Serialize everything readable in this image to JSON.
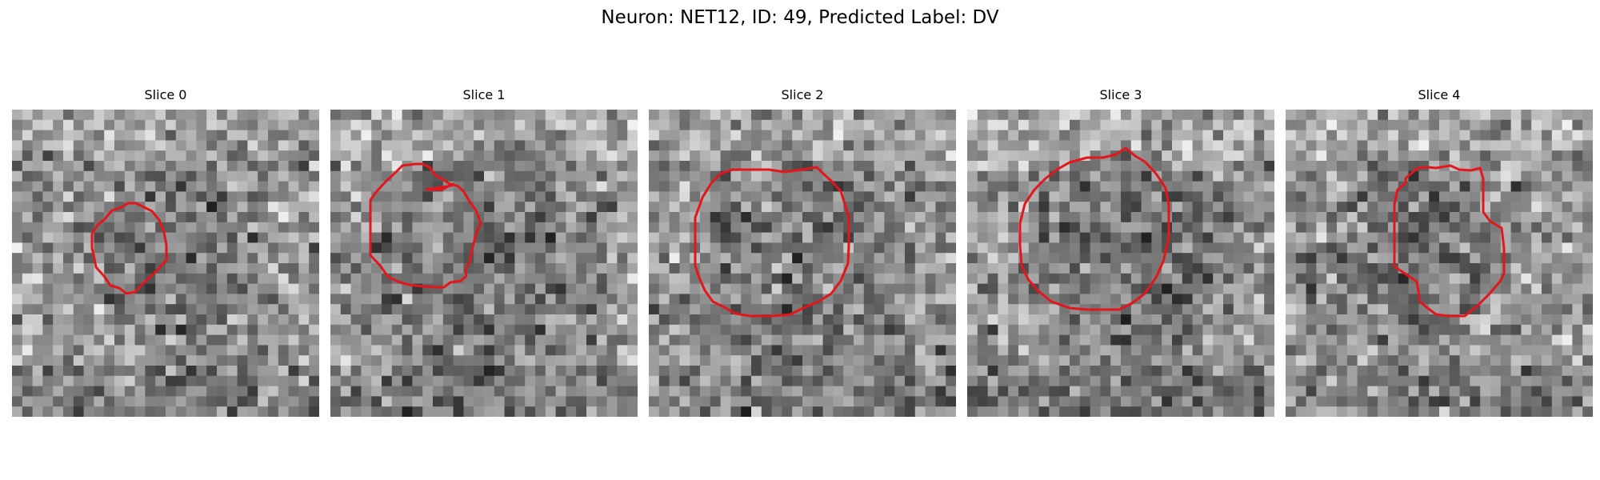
{
  "figure": {
    "title": "Neuron: NET12, ID: 49, Predicted Label: DV"
  },
  "slices": [
    {
      "label": "Slice 0",
      "seed": 11,
      "dark_center": [
        0.52,
        0.46
      ],
      "dark_radius": 0.22
    },
    {
      "label": "Slice 1",
      "seed": 29,
      "dark_center": [
        0.5,
        0.5
      ],
      "dark_radius": 0.33
    },
    {
      "label": "Slice 2",
      "seed": 47,
      "dark_center": [
        0.51,
        0.53
      ],
      "dark_radius": 0.3
    },
    {
      "label": "Slice 3",
      "seed": 73,
      "dark_center": [
        0.53,
        0.51
      ],
      "dark_radius": 0.31
    },
    {
      "label": "Slice 4",
      "seed": 97,
      "dark_center": [
        0.42,
        0.48
      ],
      "dark_radius": 0.24
    }
  ],
  "image": {
    "grid_size": 30,
    "colormap": "grayscale"
  },
  "colors": {
    "contour": "#e4151b",
    "background": "#ffffff",
    "text": "#000000"
  }
}
